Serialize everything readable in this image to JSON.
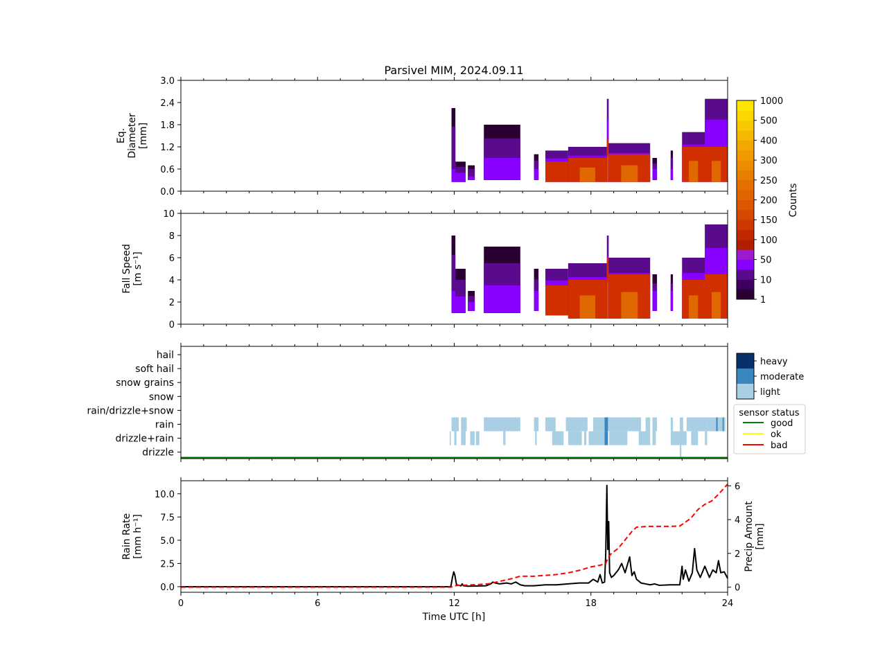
{
  "title": "Parsivel MIM, 2024.09.11",
  "xlabel": "Time UTC [h]",
  "x_ticks": [
    0,
    6,
    12,
    18,
    24
  ],
  "xlim": [
    0,
    24
  ],
  "colors": {
    "purple_dark": "#2a0033",
    "purple": "#5a0a8c",
    "violet": "#8800ff",
    "orange_red": "#d03000",
    "orange": "#e06800",
    "light_blue": "#a9cfe5",
    "mid_blue": "#3a87c0",
    "dark_blue": "#08306b",
    "good": "#008000",
    "ok": "#ffff00",
    "bad": "#ff0000"
  },
  "chart_data": [
    {
      "type": "heatmap",
      "name": "diameter",
      "ylabel_lines": [
        "Eq.",
        "Diameter",
        "[mm]"
      ],
      "ylim": [
        0,
        3.0
      ],
      "y_ticks": [
        "0.0",
        "0.6",
        "1.2",
        "1.8",
        "2.4",
        "3.0"
      ],
      "y_tick_values": [
        0,
        0.6,
        1.2,
        1.8,
        2.4,
        3.0
      ],
      "segments": [
        {
          "t0": 11.88,
          "t1": 12.05,
          "lo": 0.25,
          "hi": 2.25,
          "core_hi": 0.6,
          "level": 1
        },
        {
          "t0": 12.05,
          "t1": 12.5,
          "lo": 0.25,
          "hi": 0.8,
          "core_hi": 0.5,
          "level": 1
        },
        {
          "t0": 12.6,
          "t1": 12.9,
          "lo": 0.3,
          "hi": 0.7,
          "core_hi": 0.4,
          "level": 0
        },
        {
          "t0": 13.3,
          "t1": 14.9,
          "lo": 0.3,
          "hi": 1.8,
          "core_hi": 0.9,
          "level": 1
        },
        {
          "t0": 15.5,
          "t1": 15.7,
          "lo": 0.3,
          "hi": 1.0,
          "core_hi": 0.6,
          "level": 1
        },
        {
          "t0": 16.0,
          "t1": 17.0,
          "lo": 0.25,
          "hi": 1.1,
          "core_hi": 0.8,
          "level": 2
        },
        {
          "t0": 17.0,
          "t1": 18.7,
          "lo": 0.25,
          "hi": 1.2,
          "core_hi": 0.9,
          "level": 3
        },
        {
          "t0": 18.7,
          "t1": 18.78,
          "lo": 0.25,
          "hi": 2.5,
          "core_hi": 1.4,
          "level": 3
        },
        {
          "t0": 18.78,
          "t1": 20.6,
          "lo": 0.25,
          "hi": 1.3,
          "core_hi": 1.0,
          "level": 3
        },
        {
          "t0": 20.7,
          "t1": 20.9,
          "lo": 0.3,
          "hi": 0.9,
          "core_hi": 0.6,
          "level": 1
        },
        {
          "t0": 21.5,
          "t1": 21.6,
          "lo": 0.3,
          "hi": 1.1,
          "core_hi": 0.6,
          "level": 1
        },
        {
          "t0": 22.0,
          "t1": 23.0,
          "lo": 0.25,
          "hi": 1.6,
          "core_hi": 1.2,
          "level": 3
        },
        {
          "t0": 23.0,
          "t1": 24.0,
          "lo": 0.25,
          "hi": 2.5,
          "core_hi": 1.2,
          "level": 3
        }
      ]
    },
    {
      "type": "heatmap",
      "name": "fall_speed",
      "ylabel_lines": [
        "Fall Speed",
        "[m s⁻¹]"
      ],
      "ylim": [
        0,
        10
      ],
      "y_ticks": [
        "0",
        "2",
        "4",
        "6",
        "8",
        "10"
      ],
      "y_tick_values": [
        0,
        2,
        4,
        6,
        8,
        10
      ],
      "segments": [
        {
          "t0": 11.88,
          "t1": 12.05,
          "lo": 1.0,
          "hi": 8.0,
          "core_hi": 3.0,
          "level": 1
        },
        {
          "t0": 12.05,
          "t1": 12.5,
          "lo": 1.0,
          "hi": 5.0,
          "core_hi": 2.5,
          "level": 1
        },
        {
          "t0": 12.6,
          "t1": 12.9,
          "lo": 1.2,
          "hi": 3.0,
          "core_hi": 2.0,
          "level": 0
        },
        {
          "t0": 13.3,
          "t1": 14.9,
          "lo": 1.0,
          "hi": 7.0,
          "core_hi": 3.5,
          "level": 1
        },
        {
          "t0": 15.5,
          "t1": 15.7,
          "lo": 1.2,
          "hi": 5.0,
          "core_hi": 3.0,
          "level": 1
        },
        {
          "t0": 16.0,
          "t1": 17.0,
          "lo": 0.8,
          "hi": 5.0,
          "core_hi": 3.5,
          "level": 2
        },
        {
          "t0": 17.0,
          "t1": 18.7,
          "lo": 0.5,
          "hi": 5.5,
          "core_hi": 4.0,
          "level": 3
        },
        {
          "t0": 18.7,
          "t1": 18.78,
          "lo": 0.5,
          "hi": 8.0,
          "core_hi": 6.0,
          "level": 3
        },
        {
          "t0": 18.78,
          "t1": 20.6,
          "lo": 0.5,
          "hi": 6.0,
          "core_hi": 4.5,
          "level": 3
        },
        {
          "t0": 20.7,
          "t1": 20.9,
          "lo": 1.2,
          "hi": 4.5,
          "core_hi": 3.0,
          "level": 1
        },
        {
          "t0": 21.5,
          "t1": 21.6,
          "lo": 1.2,
          "hi": 4.5,
          "core_hi": 3.0,
          "level": 1
        },
        {
          "t0": 22.0,
          "t1": 23.0,
          "lo": 0.5,
          "hi": 6.0,
          "core_hi": 4.0,
          "level": 3
        },
        {
          "t0": 23.0,
          "t1": 24.0,
          "lo": 0.5,
          "hi": 9.0,
          "core_hi": 4.5,
          "level": 3
        }
      ]
    },
    {
      "type": "heatmap",
      "name": "precip_type",
      "categories": [
        "hail",
        "soft hail",
        "snow grains",
        "snow",
        "rain/drizzle+snow",
        "rain",
        "drizzle+rain",
        "drizzle"
      ],
      "intensity_levels": [
        "heavy",
        "moderate",
        "light"
      ],
      "rain": [
        [
          11.88,
          12.2,
          "light"
        ],
        [
          12.3,
          12.55,
          "light"
        ],
        [
          13.3,
          14.9,
          "light"
        ],
        [
          15.5,
          15.7,
          "light"
        ],
        [
          16.0,
          16.45,
          "light"
        ],
        [
          16.9,
          17.85,
          "light"
        ],
        [
          18.1,
          18.6,
          "light"
        ],
        [
          18.6,
          18.75,
          "moderate"
        ],
        [
          18.75,
          20.2,
          "light"
        ],
        [
          20.4,
          20.6,
          "light"
        ],
        [
          20.7,
          20.9,
          "light"
        ],
        [
          21.5,
          21.6,
          "light"
        ],
        [
          21.9,
          22.05,
          "light"
        ],
        [
          22.2,
          23.1,
          "light"
        ],
        [
          23.1,
          23.9,
          "light"
        ],
        [
          23.5,
          23.56,
          "moderate"
        ],
        [
          23.78,
          23.83,
          "moderate"
        ]
      ],
      "drizzle_rain": [
        [
          11.8,
          11.85,
          "light"
        ],
        [
          12.0,
          12.1,
          "light"
        ],
        [
          12.3,
          12.5,
          "light"
        ],
        [
          12.7,
          12.9,
          "light"
        ],
        [
          12.95,
          13.1,
          "light"
        ],
        [
          14.15,
          14.25,
          "light"
        ],
        [
          15.55,
          15.62,
          "light"
        ],
        [
          16.3,
          16.8,
          "light"
        ],
        [
          17.0,
          17.6,
          "light"
        ],
        [
          17.7,
          17.8,
          "light"
        ],
        [
          17.9,
          18.6,
          "light"
        ],
        [
          18.6,
          18.75,
          "moderate"
        ],
        [
          18.8,
          19.6,
          "light"
        ],
        [
          20.1,
          20.6,
          "light"
        ],
        [
          20.7,
          20.85,
          "light"
        ],
        [
          21.5,
          22.2,
          "light"
        ],
        [
          22.4,
          22.7,
          "light"
        ],
        [
          23.0,
          23.1,
          "light"
        ]
      ],
      "drizzle": [
        [
          21.9,
          21.97,
          "light"
        ]
      ],
      "sensor_status": {
        "t0": 0,
        "t1": 24,
        "state": "good"
      }
    },
    {
      "type": "line",
      "name": "rain_rate",
      "ylabel_lines": [
        "Rain Rate",
        "[mm h⁻¹]"
      ],
      "ylim": [
        -0.6,
        11.4
      ],
      "y_ticks": [
        "0.0",
        "2.5",
        "5.0",
        "7.5",
        "10.0"
      ],
      "y_tick_values": [
        0,
        2.5,
        5.0,
        7.5,
        10.0
      ],
      "x": [
        0,
        11.85,
        11.92,
        11.98,
        12.03,
        12.1,
        12.3,
        12.35,
        12.4,
        12.6,
        13.4,
        13.6,
        13.7,
        13.8,
        14.0,
        14.3,
        14.5,
        14.7,
        14.9,
        15.1,
        15.5,
        16.0,
        16.5,
        17.0,
        17.5,
        17.9,
        18.1,
        18.3,
        18.4,
        18.5,
        18.6,
        18.65,
        18.7,
        18.74,
        18.78,
        18.82,
        18.9,
        19.0,
        19.2,
        19.35,
        19.5,
        19.7,
        19.8,
        19.9,
        20.0,
        20.2,
        20.4,
        20.6,
        20.8,
        21.0,
        21.5,
        21.9,
        22.0,
        22.05,
        22.15,
        22.3,
        22.45,
        22.55,
        22.65,
        22.8,
        23.0,
        23.2,
        23.35,
        23.5,
        23.6,
        23.7,
        23.85,
        24.0
      ],
      "y": [
        0,
        0,
        1.0,
        1.6,
        1.2,
        0.2,
        0.1,
        0.3,
        0.1,
        0.05,
        0.1,
        0.3,
        0.5,
        0.4,
        0.3,
        0.4,
        0.3,
        0.5,
        0.2,
        0.1,
        0.1,
        0.2,
        0.2,
        0.3,
        0.4,
        0.4,
        0.8,
        0.5,
        1.3,
        0.4,
        0.5,
        3.5,
        10.9,
        4.0,
        7.0,
        1.5,
        1.0,
        1.2,
        1.8,
        2.5,
        1.5,
        3.2,
        1.2,
        1.6,
        0.8,
        0.4,
        0.3,
        0.2,
        0.3,
        0.15,
        0.2,
        0.2,
        2.2,
        0.8,
        1.8,
        0.6,
        1.5,
        4.1,
        1.8,
        1.0,
        2.2,
        1.0,
        1.8,
        1.5,
        2.8,
        1.5,
        1.6,
        0.9
      ],
      "color": "#000000"
    },
    {
      "type": "line",
      "name": "precip_amount",
      "ylabel_lines": [
        "Precip Amount",
        "[mm]"
      ],
      "ylim": [
        -0.3,
        6.3
      ],
      "y_ticks": [
        "0",
        "2",
        "4",
        "6"
      ],
      "y_tick_values": [
        0,
        2,
        4,
        6
      ],
      "x": [
        0,
        11.85,
        12.1,
        13.0,
        13.5,
        14.0,
        14.5,
        14.9,
        15.5,
        16.0,
        16.5,
        17.0,
        17.5,
        18.0,
        18.4,
        18.65,
        18.75,
        18.9,
        19.2,
        19.5,
        19.8,
        20.0,
        20.5,
        21.0,
        21.5,
        21.9,
        22.1,
        22.4,
        22.7,
        23.0,
        23.3,
        23.6,
        24.0
      ],
      "y": [
        0,
        0,
        0.1,
        0.15,
        0.2,
        0.35,
        0.5,
        0.65,
        0.65,
        0.7,
        0.75,
        0.85,
        1.0,
        1.2,
        1.3,
        1.4,
        1.75,
        2.0,
        2.3,
        2.8,
        3.3,
        3.55,
        3.6,
        3.6,
        3.6,
        3.62,
        3.8,
        4.1,
        4.6,
        4.9,
        5.1,
        5.5,
        6.1
      ],
      "color": "#ff0000"
    }
  ],
  "colorbar_counts": {
    "label": "Counts",
    "tick_labels": [
      "1",
      "10",
      "50",
      "100",
      "150",
      "200",
      "250",
      "300",
      "400",
      "500",
      "1000"
    ],
    "colors": [
      "#2a0033",
      "#3e0060",
      "#5a0a8c",
      "#8800ff",
      "#9c1ad1",
      "#b01e00",
      "#c22800",
      "#cc3800",
      "#d44800",
      "#dc5600",
      "#e06400",
      "#e47000",
      "#e87e00",
      "#ec8c00",
      "#f09a00",
      "#f2a800",
      "#f4b800",
      "#f8c800",
      "#fcd600",
      "#ffe600"
    ]
  },
  "colorbar_intensity": {
    "labels": [
      "heavy",
      "moderate",
      "light"
    ],
    "colors": [
      "#08306b",
      "#3a87c0",
      "#a9cfe5"
    ]
  },
  "legend": {
    "title": "sensor status",
    "items": [
      {
        "label": "good",
        "color": "#008000"
      },
      {
        "label": "ok",
        "color": "#ffff00"
      },
      {
        "label": "bad",
        "color": "#ff0000"
      }
    ]
  }
}
